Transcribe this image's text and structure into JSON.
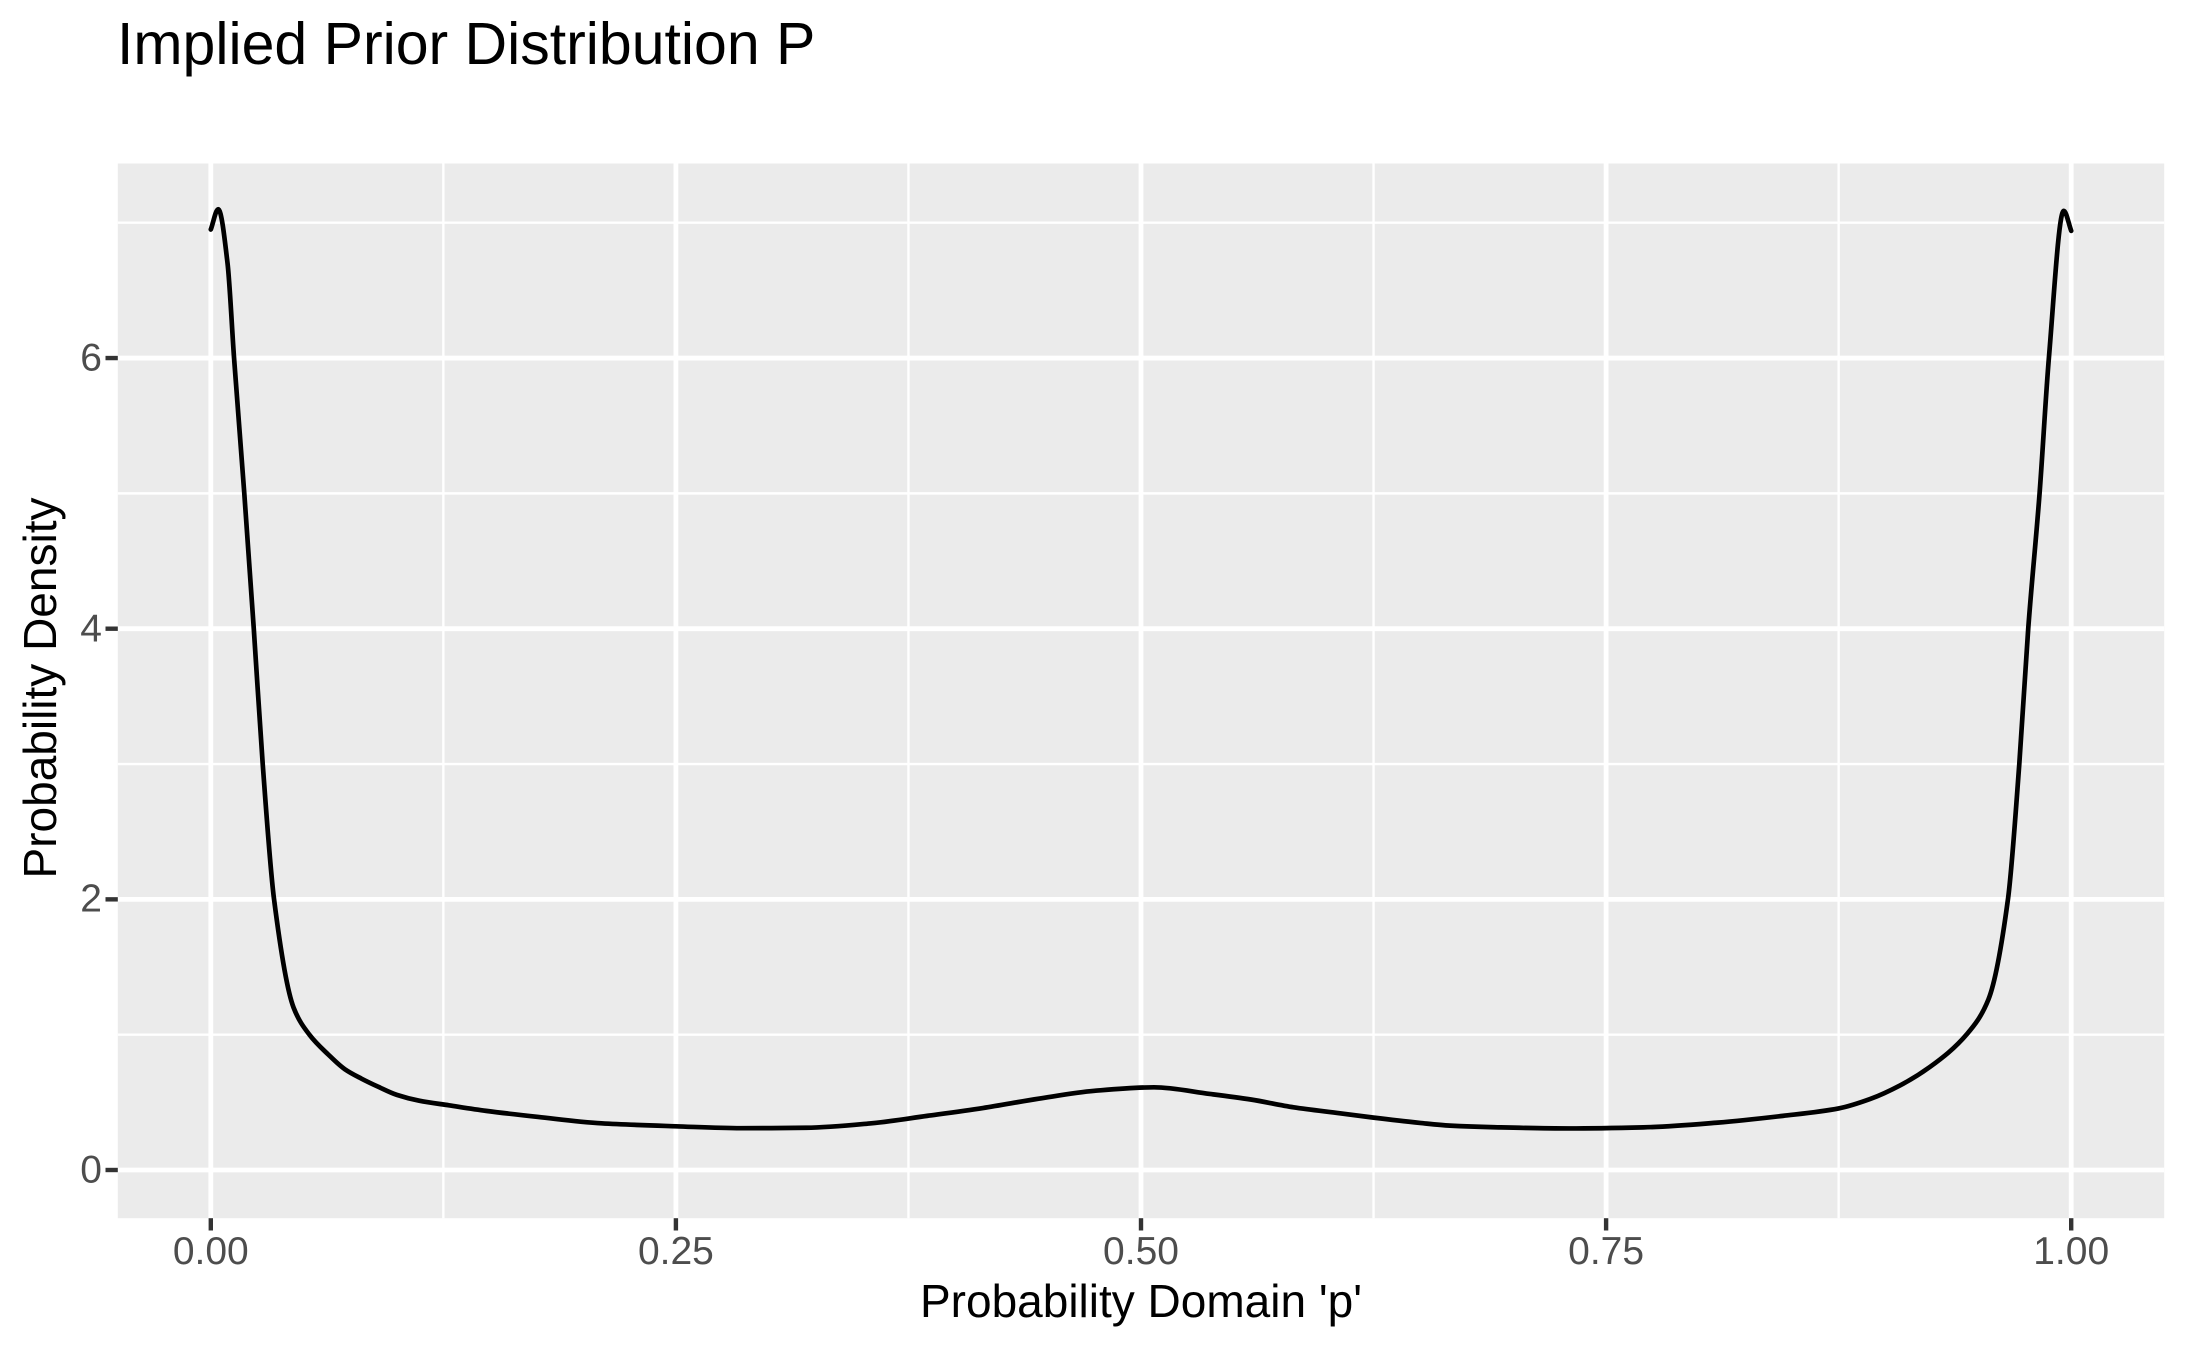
{
  "title": "Implied Prior Distribution P",
  "chart_data": {
    "type": "line",
    "title": "Implied Prior Distribution P",
    "xlabel": "Probability Domain 'p'",
    "ylabel": "Probability Density",
    "x_ticks": [
      {
        "value": 0.0,
        "label": "0.00"
      },
      {
        "value": 0.25,
        "label": "0.25"
      },
      {
        "value": 0.5,
        "label": "0.50"
      },
      {
        "value": 0.75,
        "label": "0.75"
      },
      {
        "value": 1.0,
        "label": "1.00"
      }
    ],
    "y_ticks": [
      {
        "value": 0,
        "label": "0"
      },
      {
        "value": 2,
        "label": "2"
      },
      {
        "value": 4,
        "label": "4"
      },
      {
        "value": 6,
        "label": "6"
      }
    ],
    "x_minor_gridlines": [
      0.125,
      0.375,
      0.625,
      0.875
    ],
    "y_minor_gridlines": [
      1,
      3,
      5,
      7
    ],
    "xlim": [
      -0.05,
      1.05
    ],
    "ylim": [
      -0.355,
      7.437
    ],
    "grid": "on",
    "legend": "none",
    "series": [
      {
        "name": "implied prior density",
        "x": [
          0.0,
          0.004,
          0.009,
          0.0125,
          0.018,
          0.0231,
          0.0279,
          0.034,
          0.0445,
          0.053,
          0.063,
          0.072,
          0.081,
          0.09,
          0.1,
          0.112,
          0.128,
          0.148,
          0.176,
          0.21,
          0.25,
          0.285,
          0.32,
          0.355,
          0.385,
          0.415,
          0.445,
          0.475,
          0.507,
          0.537,
          0.559,
          0.582,
          0.607,
          0.625,
          0.65,
          0.666,
          0.69,
          0.73,
          0.77,
          0.81,
          0.845,
          0.875,
          0.892,
          0.908,
          0.924,
          0.944,
          0.9555,
          0.966,
          0.9721,
          0.9769,
          0.983,
          0.988,
          0.996,
          1.0
        ],
        "y": [
          6.95,
          7.1,
          6.7,
          6.0,
          5.0,
          4.0,
          3.0,
          2.0,
          1.2,
          1.0,
          0.855,
          0.745,
          0.675,
          0.615,
          0.555,
          0.512,
          0.478,
          0.437,
          0.392,
          0.345,
          0.323,
          0.309,
          0.312,
          0.345,
          0.4,
          0.458,
          0.527,
          0.585,
          0.611,
          0.562,
          0.521,
          0.463,
          0.419,
          0.387,
          0.348,
          0.328,
          0.316,
          0.307,
          0.315,
          0.35,
          0.4,
          0.455,
          0.525,
          0.625,
          0.761,
          1.005,
          1.26,
          2.0,
          3.0,
          4.0,
          5.0,
          6.0,
          7.088,
          6.94
        ]
      }
    ],
    "colors": {
      "panel_background": "#EBEBEB",
      "gridline": "#FFFFFF",
      "curve": "#000000",
      "tick_mark": "#333333",
      "tick_label": "#4D4D4D",
      "title_text": "#000000",
      "axis_title_text": "#000000",
      "plot_background": "#FFFFFF"
    }
  }
}
